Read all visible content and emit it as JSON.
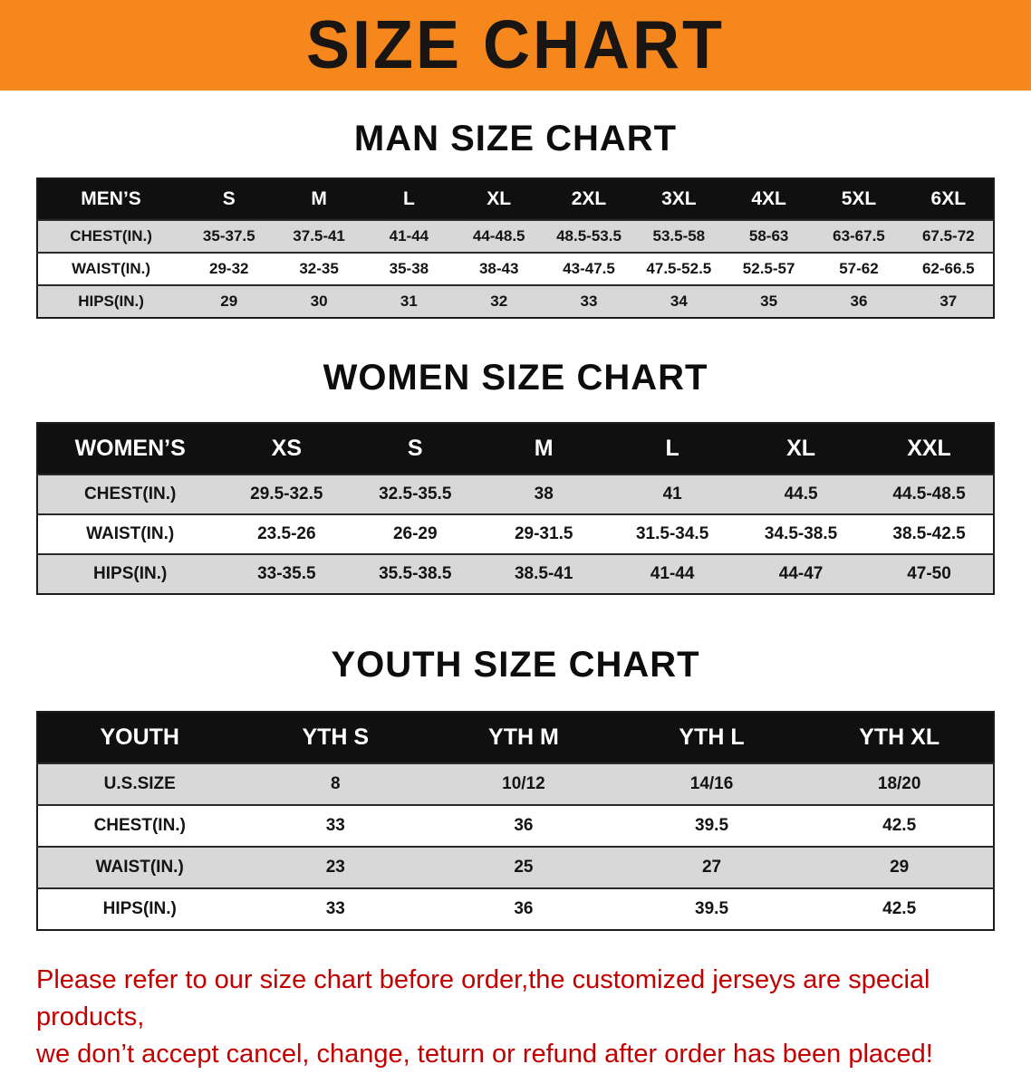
{
  "banner": {
    "title": "SIZE CHART",
    "bg_color": "#f6871d"
  },
  "men": {
    "heading": "MAN SIZE CHART",
    "columns": [
      "MEN’S",
      "S",
      "M",
      "L",
      "XL",
      "2XL",
      "3XL",
      "4XL",
      "5XL",
      "6XL"
    ],
    "rows": [
      [
        "CHEST(IN.)",
        "35-37.5",
        "37.5-41",
        "41-44",
        "44-48.5",
        "48.5-53.5",
        "53.5-58",
        "58-63",
        "63-67.5",
        "67.5-72"
      ],
      [
        "WAIST(IN.)",
        "29-32",
        "32-35",
        "35-38",
        "38-43",
        "43-47.5",
        "47.5-52.5",
        "52.5-57",
        "57-62",
        "62-66.5"
      ],
      [
        "HIPS(IN.)",
        "29",
        "30",
        "31",
        "32",
        "33",
        "34",
        "35",
        "36",
        "37"
      ]
    ]
  },
  "women": {
    "heading": "WOMEN SIZE CHART",
    "columns": [
      "WOMEN’S",
      "XS",
      "S",
      "M",
      "L",
      "XL",
      "XXL"
    ],
    "rows": [
      [
        "CHEST(IN.)",
        "29.5-32.5",
        "32.5-35.5",
        "38",
        "41",
        "44.5",
        "44.5-48.5"
      ],
      [
        "WAIST(IN.)",
        "23.5-26",
        "26-29",
        "29-31.5",
        "31.5-34.5",
        "34.5-38.5",
        "38.5-42.5"
      ],
      [
        "HIPS(IN.)",
        "33-35.5",
        "35.5-38.5",
        "38.5-41",
        "41-44",
        "44-47",
        "47-50"
      ]
    ]
  },
  "youth": {
    "heading": "YOUTH SIZE CHART",
    "columns": [
      "YOUTH",
      "YTH S",
      "YTH M",
      "YTH L",
      "YTH XL"
    ],
    "rows": [
      [
        "U.S.SIZE",
        "8",
        "10/12",
        "14/16",
        "18/20"
      ],
      [
        "CHEST(IN.)",
        "33",
        "36",
        "39.5",
        "42.5"
      ],
      [
        "WAIST(IN.)",
        "23",
        "25",
        "27",
        "29"
      ],
      [
        "HIPS(IN.)",
        "33",
        "36",
        "39.5",
        "42.5"
      ]
    ]
  },
  "disclaimer": {
    "line1": "Please refer to our size chart before order,the customized jerseys are special products,",
    "line2": "we don’t accept cancel, change, teturn or refund after order has been placed!",
    "color": "#c20000"
  }
}
